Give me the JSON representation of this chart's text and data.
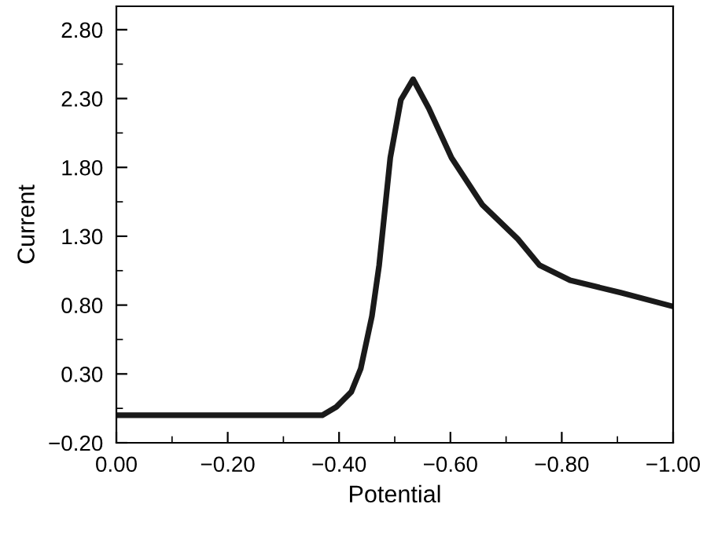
{
  "chart_data": {
    "type": "line",
    "xlabel": "Potential",
    "ylabel": "Current",
    "x": [
      0,
      -0.2,
      -0.354,
      -0.37,
      -0.395,
      -0.422,
      -0.439,
      -0.459,
      -0.472,
      -0.492,
      -0.511,
      -0.533,
      -0.561,
      -0.602,
      -0.657,
      -0.721,
      -0.76,
      -0.815,
      -0.906,
      -1.0
    ],
    "series": [
      {
        "color": "#1a1a1a",
        "values": [
          0.0,
          0.0,
          0.0,
          0.0,
          0.06,
          0.17,
          0.34,
          0.72,
          1.09,
          1.87,
          2.29,
          2.44,
          2.23,
          1.87,
          1.53,
          1.28,
          1.09,
          0.98,
          0.89,
          0.79
        ]
      }
    ],
    "xlim": [
      0,
      -1.0
    ],
    "xticks": [
      {
        "value": 0,
        "label": "0.00"
      },
      {
        "value": -0.2,
        "label": "−0.20"
      },
      {
        "value": -0.4,
        "label": "−0.40"
      },
      {
        "value": -0.6,
        "label": "−0.60"
      },
      {
        "value": -0.8,
        "label": "−0.80"
      },
      {
        "value": -1.0,
        "label": "−1.00"
      }
    ],
    "ylim": [
      -0.2,
      2.97
    ],
    "yticks": [
      {
        "value": -0.2,
        "label": "−0.20"
      },
      {
        "value": 0.3,
        "label": "0.30"
      },
      {
        "value": 0.8,
        "label": "0.80"
      },
      {
        "value": 1.3,
        "label": "1.30"
      },
      {
        "value": 1.8,
        "label": "1.80"
      },
      {
        "value": 2.3,
        "label": "2.30"
      },
      {
        "value": 2.8,
        "label": "2.80"
      }
    ],
    "grid": false,
    "legend": false,
    "marker": "none",
    "line_style": "solid"
  }
}
